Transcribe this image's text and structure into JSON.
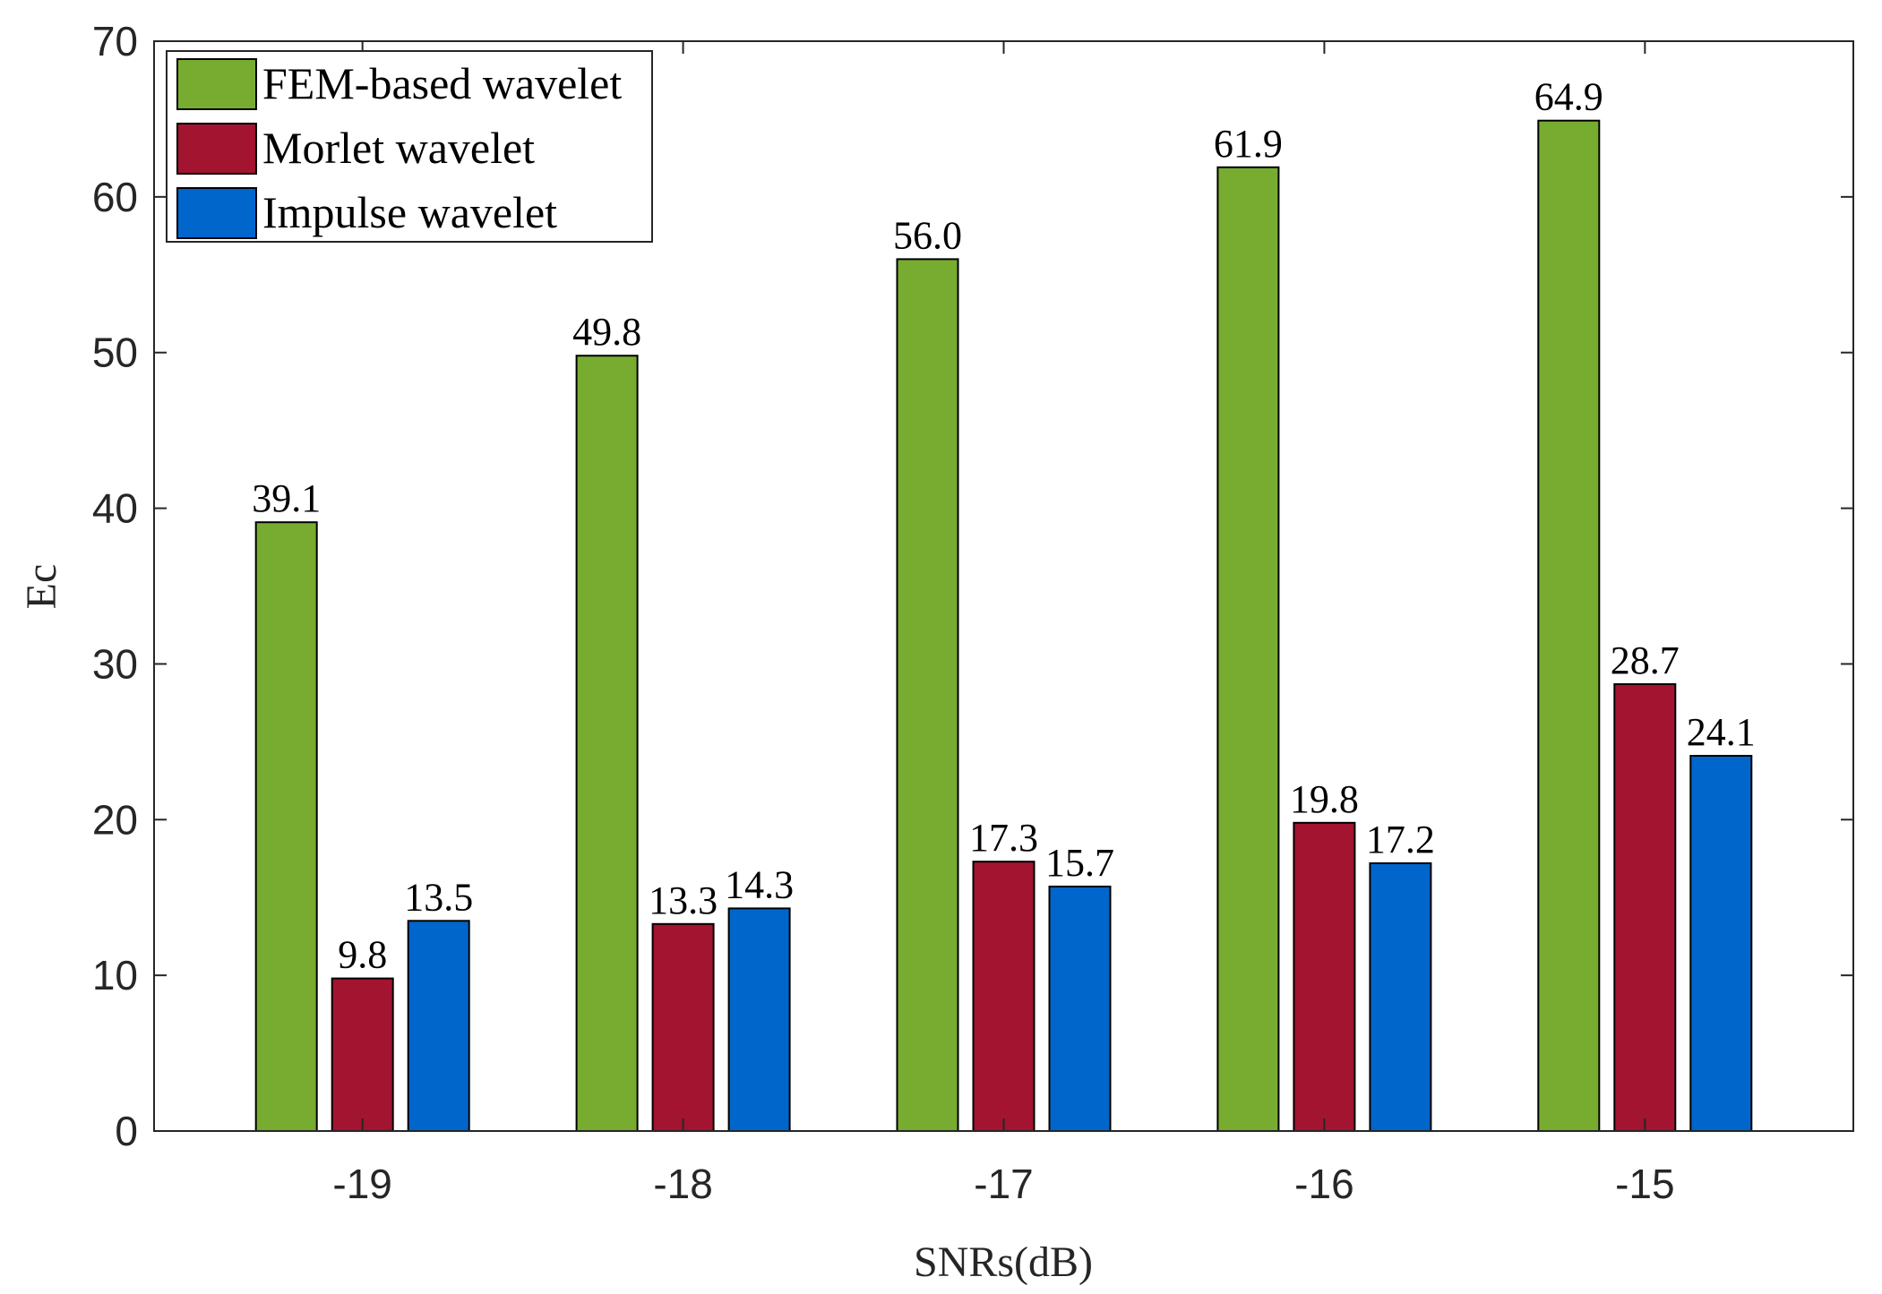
{
  "chart_data": {
    "type": "bar",
    "title": "",
    "xlabel": "SNRs(dB)",
    "ylabel": "Ec",
    "categories": [
      "-19",
      "-18",
      "-17",
      "-16",
      "-15"
    ],
    "ylim": [
      0,
      70
    ],
    "yticks": [
      0,
      10,
      20,
      30,
      40,
      50,
      60,
      70
    ],
    "grid": false,
    "legend_position": "top-left",
    "series": [
      {
        "name": "FEM-based wavelet",
        "color": "#77AC30",
        "values": [
          39.1,
          49.8,
          56.0,
          61.9,
          64.9
        ],
        "labels": [
          "39.1",
          "49.8",
          "56.0",
          "61.9",
          "64.9"
        ]
      },
      {
        "name": "Morlet wavelet",
        "color": "#A2142F",
        "values": [
          9.8,
          13.3,
          17.3,
          19.8,
          28.7
        ],
        "labels": [
          "9.8",
          "13.3",
          "17.3",
          "19.8",
          "28.7"
        ]
      },
      {
        "name": "Impulse wavelet",
        "color": "#0066CC",
        "values": [
          13.5,
          14.3,
          15.7,
          17.2,
          24.1
        ],
        "labels": [
          "13.5",
          "14.3",
          "15.7",
          "17.2",
          "24.1"
        ]
      }
    ]
  }
}
